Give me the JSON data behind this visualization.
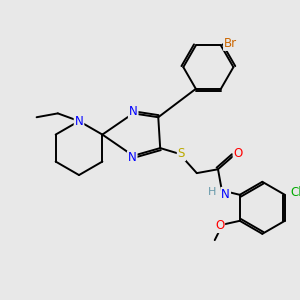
{
  "background_color": "#e8e8e8",
  "bond_color": "#000000",
  "atom_colors": {
    "N": "#0000ff",
    "S": "#bbaa00",
    "O": "#ff0000",
    "Br": "#cc6600",
    "Cl": "#00aa00",
    "C": "#000000",
    "H": "#6699aa"
  },
  "figsize": [
    3.0,
    3.0
  ],
  "dpi": 100,
  "xlim": [
    0,
    300
  ],
  "ylim": [
    0,
    300
  ]
}
